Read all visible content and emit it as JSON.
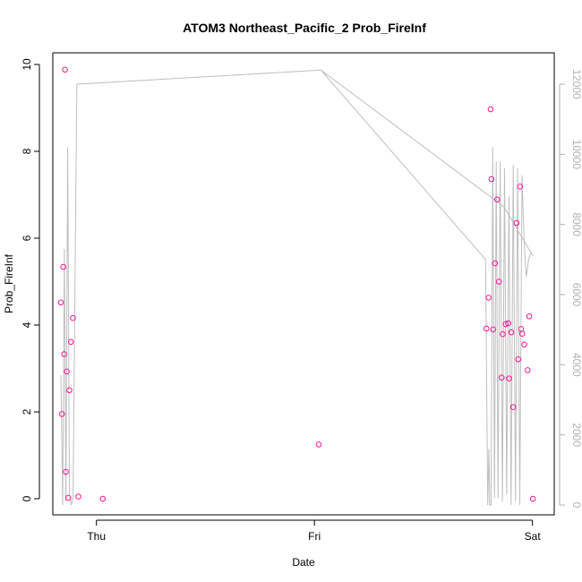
{
  "chart_data": {
    "type": "scatter",
    "title": "ATOM3 Northeast_Pacific_2 Prob_FireInf",
    "xlabel": "Date",
    "ylabel": "Prob_FireInf",
    "x_ticks": [
      {
        "label": "Thu",
        "day": 1.0
      },
      {
        "label": "Fri",
        "day": 2.0
      },
      {
        "label": "Sat",
        "day": 3.0
      }
    ],
    "xlim_days": [
      0.8,
      3.1
    ],
    "ylim": [
      0,
      10
    ],
    "y_ticks": [
      0,
      2,
      4,
      6,
      8,
      10
    ],
    "y2lim": [
      0,
      12000
    ],
    "y2_ticks": [
      0,
      2000,
      4000,
      6000,
      8000,
      10000,
      12000
    ],
    "grid": false,
    "colors": {
      "points": "#ff1493",
      "secondary_line": "#bebebe",
      "axis": "#000000",
      "right_axis": "#b0b0b0"
    },
    "series": [
      {
        "type": "scatter",
        "x_days": [
          0.837,
          0.842,
          0.848,
          0.852,
          0.856,
          0.86,
          0.864,
          0.871,
          0.876,
          0.883,
          0.892,
          0.917,
          1.029,
          2.02,
          2.789,
          2.799,
          2.808,
          2.812,
          2.82,
          2.828,
          2.838,
          2.846,
          2.859,
          2.864,
          2.877,
          2.889,
          2.893,
          2.903,
          2.912,
          2.927,
          2.935,
          2.943,
          2.948,
          2.953,
          2.963,
          2.978,
          2.985,
          3.002
        ],
        "values": [
          4.52,
          1.95,
          5.34,
          3.33,
          9.88,
          0.62,
          2.93,
          0.02,
          2.5,
          3.61,
          4.16,
          0.05,
          0.0,
          1.25,
          3.92,
          4.63,
          8.97,
          7.36,
          3.9,
          5.42,
          6.89,
          5.0,
          2.79,
          3.79,
          4.02,
          4.04,
          2.77,
          3.83,
          2.11,
          6.35,
          3.21,
          7.19,
          3.91,
          3.8,
          3.55,
          2.96,
          4.2,
          0.0
        ]
      },
      {
        "type": "line",
        "axis": "right",
        "x_days": [
          0.837,
          0.845,
          0.853,
          0.86,
          0.868,
          0.876,
          0.885,
          0.893,
          0.91,
          2.03,
          2.785,
          2.795,
          2.8,
          2.804,
          2.81,
          2.818,
          2.826,
          2.834,
          2.842,
          2.852,
          2.862,
          2.872,
          2.882,
          2.892,
          2.902,
          2.912,
          2.922,
          2.932,
          2.942,
          2.952,
          2.962,
          2.972,
          2.982,
          2.992,
          3.002,
          2.87,
          2.03
        ],
        "values": [
          3700,
          0,
          7300,
          100,
          10200,
          300,
          0,
          200,
          12000,
          12400,
          7000,
          0,
          1600,
          0,
          0,
          10200,
          200,
          9800,
          200,
          9800,
          100,
          9600,
          300,
          8800,
          0,
          9700,
          100,
          9600,
          0,
          9400,
          7500,
          6500,
          7000,
          7200,
          7100,
          8500,
          12400
        ]
      }
    ]
  }
}
